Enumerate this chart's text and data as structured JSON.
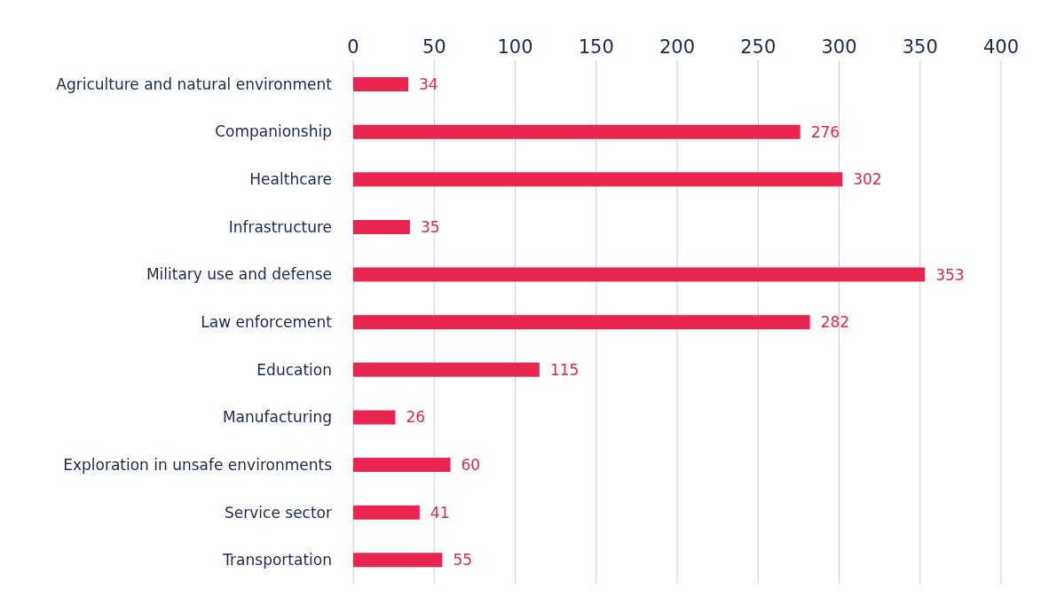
{
  "chart_data": {
    "type": "bar",
    "orientation": "horizontal",
    "categories": [
      "Agriculture and natural environment",
      "Companionship",
      "Healthcare",
      "Infrastructure",
      "Military use and defense",
      "Law enforcement",
      "Education",
      "Manufacturing",
      "Exploration in unsafe environments",
      "Service sector",
      "Transportation"
    ],
    "values": [
      34,
      276,
      302,
      35,
      353,
      282,
      115,
      26,
      60,
      41,
      55
    ],
    "color": "#e8254f",
    "xlim": [
      0,
      400
    ],
    "xticks": [
      0,
      50,
      100,
      150,
      200,
      250,
      300,
      350,
      400
    ],
    "grid": "x",
    "data_labels": true,
    "legend": false
  }
}
